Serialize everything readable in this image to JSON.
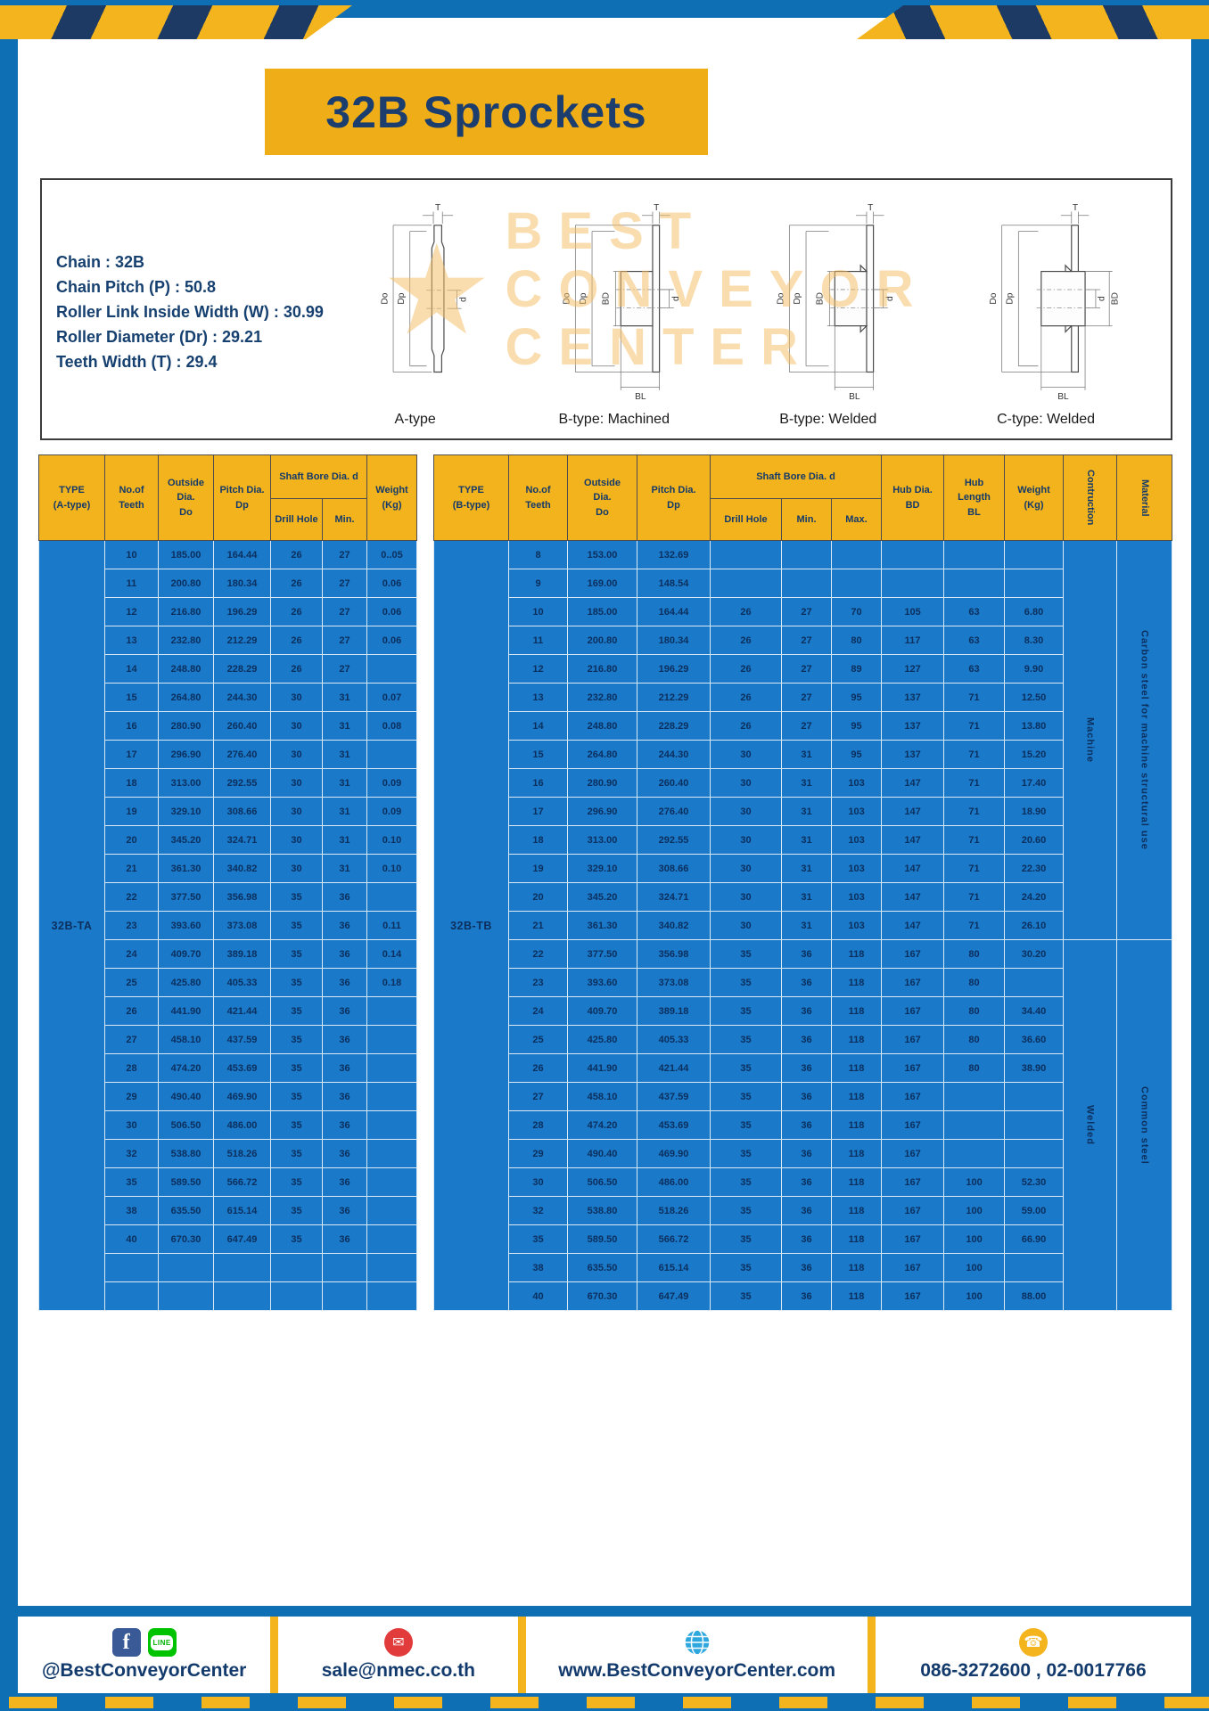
{
  "page": {
    "title": "32B Sprockets"
  },
  "specs": [
    {
      "label": "Chain",
      "value": "32B"
    },
    {
      "label": "Chain Pitch (P)",
      "value": "50.8"
    },
    {
      "label": "Roller Link Inside Width (W)",
      "value": "30.99"
    },
    {
      "label": "Roller Diameter (Dr)",
      "value": "29.21"
    },
    {
      "label": "Teeth Width (T)",
      "value": "29.4"
    }
  ],
  "watermark": {
    "line1": "BEST",
    "line2": "CONVEYOR",
    "line3": "CENTER"
  },
  "diagrams": [
    {
      "caption": "A-type",
      "t": "T",
      "do": "Do",
      "dp": "Dp",
      "d": "d"
    },
    {
      "caption": "B-type: Machined",
      "t": "T",
      "do": "Do",
      "dp": "Dp",
      "d": "d",
      "bd": "BD",
      "bl": "BL"
    },
    {
      "caption": "B-type: Welded",
      "t": "T",
      "do": "Do",
      "dp": "Dp",
      "d": "d",
      "bd": "BD",
      "bl": "BL"
    },
    {
      "caption": "C-type: Welded",
      "t": "T",
      "do": "Do",
      "dp": "Dp",
      "d": "d",
      "bd": "BD",
      "bl": "BL"
    }
  ],
  "table_a": {
    "type_label": "32B-TA",
    "headers": {
      "type": "TYPE\n(A-type)",
      "teeth": "No.of\nTeeth",
      "outside": "Outside\nDia.\nDo",
      "pitch": "Pitch Dia.\nDp",
      "shaft_bore": "Shaft Bore Dia. d",
      "drill": "Drill Hole",
      "min": "Min.",
      "weight": "Weight\n(Kg)"
    },
    "rows": [
      [
        "10",
        "185.00",
        "164.44",
        "26",
        "27",
        "0..05"
      ],
      [
        "11",
        "200.80",
        "180.34",
        "26",
        "27",
        "0.06"
      ],
      [
        "12",
        "216.80",
        "196.29",
        "26",
        "27",
        "0.06"
      ],
      [
        "13",
        "232.80",
        "212.29",
        "26",
        "27",
        "0.06"
      ],
      [
        "14",
        "248.80",
        "228.29",
        "26",
        "27",
        ""
      ],
      [
        "15",
        "264.80",
        "244.30",
        "30",
        "31",
        "0.07"
      ],
      [
        "16",
        "280.90",
        "260.40",
        "30",
        "31",
        "0.08"
      ],
      [
        "17",
        "296.90",
        "276.40",
        "30",
        "31",
        ""
      ],
      [
        "18",
        "313.00",
        "292.55",
        "30",
        "31",
        "0.09"
      ],
      [
        "19",
        "329.10",
        "308.66",
        "30",
        "31",
        "0.09"
      ],
      [
        "20",
        "345.20",
        "324.71",
        "30",
        "31",
        "0.10"
      ],
      [
        "21",
        "361.30",
        "340.82",
        "30",
        "31",
        "0.10"
      ],
      [
        "22",
        "377.50",
        "356.98",
        "35",
        "36",
        ""
      ],
      [
        "23",
        "393.60",
        "373.08",
        "35",
        "36",
        "0.11"
      ],
      [
        "24",
        "409.70",
        "389.18",
        "35",
        "36",
        "0.14"
      ],
      [
        "25",
        "425.80",
        "405.33",
        "35",
        "36",
        "0.18"
      ],
      [
        "26",
        "441.90",
        "421.44",
        "35",
        "36",
        ""
      ],
      [
        "27",
        "458.10",
        "437.59",
        "35",
        "36",
        ""
      ],
      [
        "28",
        "474.20",
        "453.69",
        "35",
        "36",
        ""
      ],
      [
        "29",
        "490.40",
        "469.90",
        "35",
        "36",
        ""
      ],
      [
        "30",
        "506.50",
        "486.00",
        "35",
        "36",
        ""
      ],
      [
        "32",
        "538.80",
        "518.26",
        "35",
        "36",
        ""
      ],
      [
        "35",
        "589.50",
        "566.72",
        "35",
        "36",
        ""
      ],
      [
        "38",
        "635.50",
        "615.14",
        "35",
        "36",
        ""
      ],
      [
        "40",
        "670.30",
        "647.49",
        "35",
        "36",
        ""
      ],
      [
        "",
        "",
        "",
        "",
        "",
        ""
      ],
      [
        "",
        "",
        "",
        "",
        "",
        ""
      ]
    ]
  },
  "table_b": {
    "type_label": "32B-TB",
    "headers": {
      "type": "TYPE\n(B-type)",
      "teeth": "No.of\nTeeth",
      "outside": "Outside\nDia.\nDo",
      "pitch": "Pitch Dia.\nDp",
      "shaft_bore": "Shaft Bore Dia. d",
      "drill": "Drill Hole",
      "min": "Min.",
      "max": "Max.",
      "hub_dia": "Hub Dia.\nBD",
      "hub_len": "Hub\nLength\nBL",
      "weight": "Weight\n(Kg)",
      "construction": "Contruction",
      "material": "Material"
    },
    "groups": [
      {
        "rows": 14,
        "construction": "Machine",
        "material": "Carbon steel for machine structural use"
      },
      {
        "rows": 13,
        "construction": "Welded",
        "material": "Common steel"
      }
    ],
    "rows": [
      [
        "8",
        "153.00",
        "132.69",
        "",
        "",
        "",
        "",
        "",
        ""
      ],
      [
        "9",
        "169.00",
        "148.54",
        "",
        "",
        "",
        "",
        "",
        ""
      ],
      [
        "10",
        "185.00",
        "164.44",
        "26",
        "27",
        "70",
        "105",
        "63",
        "6.80"
      ],
      [
        "11",
        "200.80",
        "180.34",
        "26",
        "27",
        "80",
        "117",
        "63",
        "8.30"
      ],
      [
        "12",
        "216.80",
        "196.29",
        "26",
        "27",
        "89",
        "127",
        "63",
        "9.90"
      ],
      [
        "13",
        "232.80",
        "212.29",
        "26",
        "27",
        "95",
        "137",
        "71",
        "12.50"
      ],
      [
        "14",
        "248.80",
        "228.29",
        "26",
        "27",
        "95",
        "137",
        "71",
        "13.80"
      ],
      [
        "15",
        "264.80",
        "244.30",
        "30",
        "31",
        "95",
        "137",
        "71",
        "15.20"
      ],
      [
        "16",
        "280.90",
        "260.40",
        "30",
        "31",
        "103",
        "147",
        "71",
        "17.40"
      ],
      [
        "17",
        "296.90",
        "276.40",
        "30",
        "31",
        "103",
        "147",
        "71",
        "18.90"
      ],
      [
        "18",
        "313.00",
        "292.55",
        "30",
        "31",
        "103",
        "147",
        "71",
        "20.60"
      ],
      [
        "19",
        "329.10",
        "308.66",
        "30",
        "31",
        "103",
        "147",
        "71",
        "22.30"
      ],
      [
        "20",
        "345.20",
        "324.71",
        "30",
        "31",
        "103",
        "147",
        "71",
        "24.20"
      ],
      [
        "21",
        "361.30",
        "340.82",
        "30",
        "31",
        "103",
        "147",
        "71",
        "26.10"
      ],
      [
        "22",
        "377.50",
        "356.98",
        "35",
        "36",
        "118",
        "167",
        "80",
        "30.20"
      ],
      [
        "23",
        "393.60",
        "373.08",
        "35",
        "36",
        "118",
        "167",
        "80",
        ""
      ],
      [
        "24",
        "409.70",
        "389.18",
        "35",
        "36",
        "118",
        "167",
        "80",
        "34.40"
      ],
      [
        "25",
        "425.80",
        "405.33",
        "35",
        "36",
        "118",
        "167",
        "80",
        "36.60"
      ],
      [
        "26",
        "441.90",
        "421.44",
        "35",
        "36",
        "118",
        "167",
        "80",
        "38.90"
      ],
      [
        "27",
        "458.10",
        "437.59",
        "35",
        "36",
        "118",
        "167",
        "",
        ""
      ],
      [
        "28",
        "474.20",
        "453.69",
        "35",
        "36",
        "118",
        "167",
        "",
        ""
      ],
      [
        "29",
        "490.40",
        "469.90",
        "35",
        "36",
        "118",
        "167",
        "",
        ""
      ],
      [
        "30",
        "506.50",
        "486.00",
        "35",
        "36",
        "118",
        "167",
        "100",
        "52.30"
      ],
      [
        "32",
        "538.80",
        "518.26",
        "35",
        "36",
        "118",
        "167",
        "100",
        "59.00"
      ],
      [
        "35",
        "589.50",
        "566.72",
        "35",
        "36",
        "118",
        "167",
        "100",
        "66.90"
      ],
      [
        "38",
        "635.50",
        "615.14",
        "35",
        "36",
        "118",
        "167",
        "100",
        ""
      ],
      [
        "40",
        "670.30",
        "647.49",
        "35",
        "36",
        "118",
        "167",
        "100",
        "88.00"
      ]
    ]
  },
  "footer": {
    "social_label": "@BestConveyorCenter",
    "email": "sale@nmec.co.th",
    "website": "www.BestConveyorCenter.com",
    "phone": "086-3272600 , 02-0017766",
    "icons": {
      "facebook": "f",
      "line": "LINE",
      "mail": "✉",
      "phone": "☎"
    }
  },
  "colors": {
    "frame_blue": "#0f6fb4",
    "accent_yellow": "#f3b41d",
    "navy": "#16406f",
    "table_blue": "#1a79c8"
  }
}
